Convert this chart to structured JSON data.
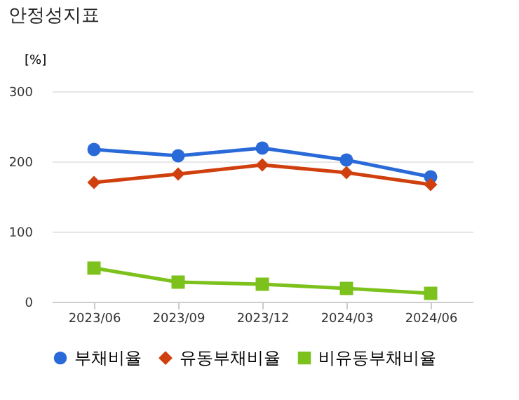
{
  "chart_data": {
    "type": "line",
    "title": "안정성지표",
    "ylabel": "[%]",
    "categories": [
      "2023/06",
      "2023/09",
      "2023/12",
      "2024/03",
      "2024/06"
    ],
    "series": [
      {
        "name": "부채비율",
        "color": "#2a6ad8",
        "marker": "circle",
        "values": [
          217,
          208,
          219,
          202,
          178
        ]
      },
      {
        "name": "유동부채비율",
        "color": "#d0400e",
        "marker": "diamond",
        "values": [
          170,
          182,
          195,
          184,
          167
        ]
      },
      {
        "name": "비유동부채비율",
        "color": "#7cc11c",
        "marker": "square",
        "values": [
          48,
          28,
          25,
          19,
          12
        ]
      }
    ],
    "ylim": [
      0,
      300
    ],
    "yticks": [
      0,
      100,
      200,
      300
    ],
    "grid": "y",
    "legend": "bottom"
  }
}
